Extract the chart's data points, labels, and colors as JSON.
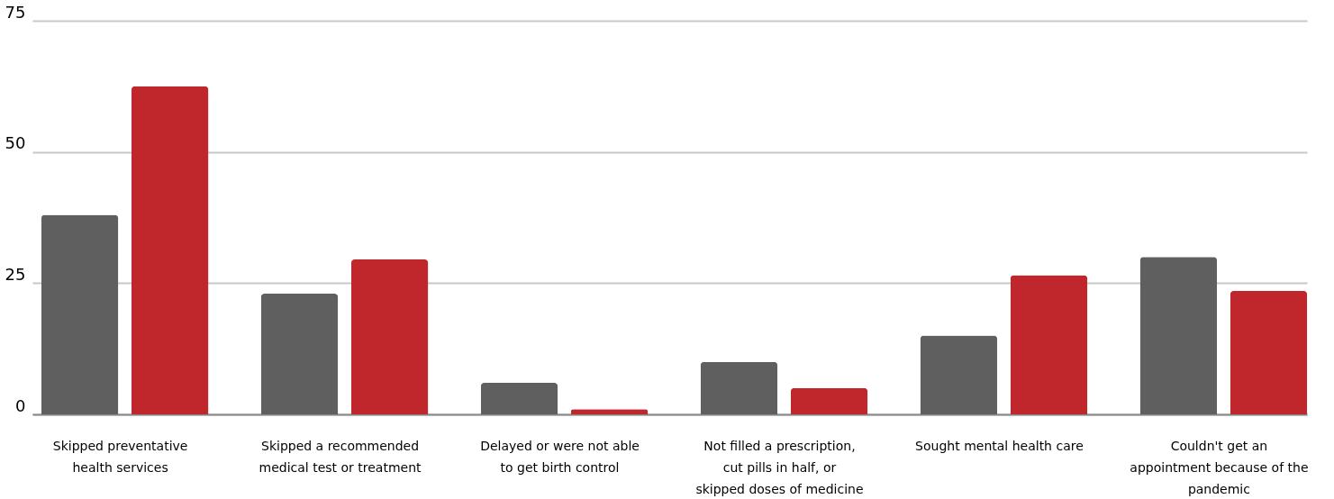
{
  "chart_data": {
    "type": "bar",
    "categories": [
      "Skipped preventative health services",
      "Skipped a recommended medical test or treatment",
      "Delayed or were not able to get birth control",
      "Not filled a prescription, cut pills in half, or skipped doses of medicine",
      "Sought mental health care",
      "Couldn't get an appointment because of the pandemic"
    ],
    "series": [
      {
        "color": "#5f5f5f",
        "values": [
          38,
          23,
          6,
          10,
          15,
          30
        ]
      },
      {
        "color": "#c0272d",
        "values": [
          62.5,
          29.5,
          1,
          5,
          26.5,
          23.5
        ]
      }
    ],
    "ylim": [
      0,
      75
    ],
    "yticks": [
      0,
      25,
      50,
      75
    ],
    "grid": "y",
    "legend": false
  }
}
